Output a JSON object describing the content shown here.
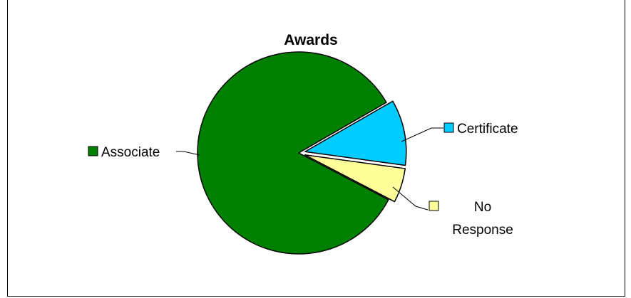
{
  "chart_data": {
    "type": "pie",
    "title": "Awards",
    "slices": [
      {
        "label": "Associate",
        "value": 84,
        "color": "#008000",
        "exploded": false
      },
      {
        "label": "Certificate",
        "value": 10.5,
        "color": "#00CCFF",
        "exploded": true
      },
      {
        "label": "No Response",
        "label_lines": [
          "No",
          "Response"
        ],
        "value": 5.5,
        "color": "#FFFF99",
        "exploded": true
      }
    ],
    "legend": "labels-with-leader-lines"
  }
}
